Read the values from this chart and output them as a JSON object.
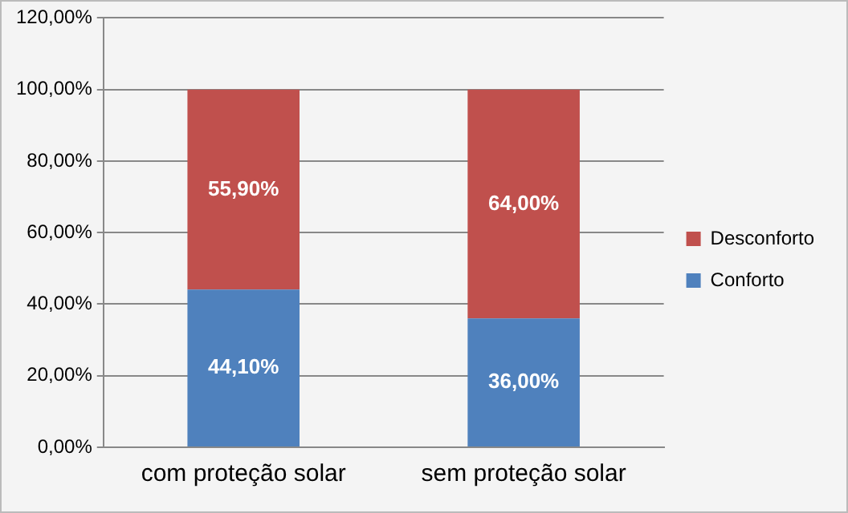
{
  "chart_data": {
    "type": "bar",
    "stacked": true,
    "categories": [
      "com proteção solar",
      "sem proteção solar"
    ],
    "series": [
      {
        "name": "Conforto",
        "color": "#4f81bd",
        "values": [
          44.1,
          36.0
        ],
        "value_labels": [
          "44,10%",
          "36,00%"
        ]
      },
      {
        "name": "Desconforto",
        "color": "#c0504d",
        "values": [
          55.9,
          64.0
        ],
        "value_labels": [
          "55,90%",
          "64,00%"
        ]
      }
    ],
    "ylim": [
      0,
      120
    ],
    "yticks": [
      {
        "value": 0,
        "label": "0,00%"
      },
      {
        "value": 20,
        "label": "20,00%"
      },
      {
        "value": 40,
        "label": "40,00%"
      },
      {
        "value": 60,
        "label": "60,00%"
      },
      {
        "value": 80,
        "label": "80,00%"
      },
      {
        "value": 100,
        "label": "100,00%"
      },
      {
        "value": 120,
        "label": "120,00%"
      }
    ],
    "grid": "y",
    "legend": "right"
  }
}
